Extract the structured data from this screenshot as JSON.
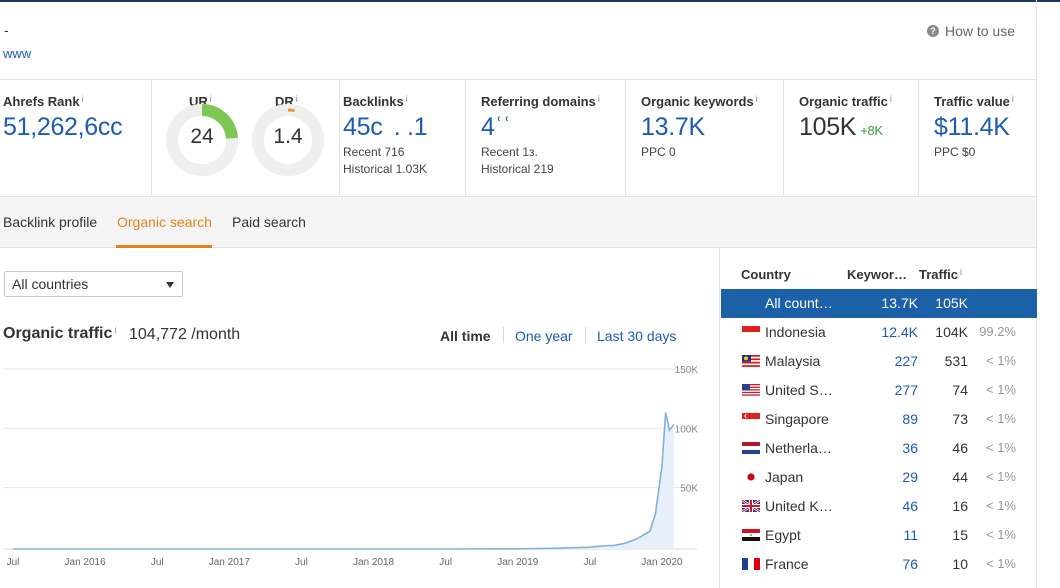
{
  "header": {
    "dash": "-",
    "url": "www",
    "how_to_use": "How to use"
  },
  "metrics": {
    "ahrefs_rank": {
      "label": "Ahrefs Rank",
      "value": "51,262,6сс"
    },
    "ur": {
      "label": "UR",
      "value": "24",
      "level": 24
    },
    "dr": {
      "label": "DR",
      "value": "1.4",
      "level": 1.4
    },
    "backlinks": {
      "label": "Backlinks",
      "value": "45с  . .1",
      "recent": "Recent 716",
      "historical": "Historical 1.03K"
    },
    "referring_domains": {
      "label": "Referring domains",
      "value": "4ʿʿ",
      "recent": "Recent 1з.",
      "historical": "Historical 219"
    },
    "organic_keywords": {
      "label": "Organic keywords",
      "value": "13.7K",
      "sub": "PPC 0"
    },
    "organic_traffic": {
      "label": "Organic traffic",
      "value": "105K",
      "delta": "+8K"
    },
    "traffic_value": {
      "label": "Traffic value",
      "value": "$11.4K",
      "sub": "PPC $0"
    },
    "info_mark": "i"
  },
  "tabs": [
    {
      "label": "Backlink profile"
    },
    {
      "label": "Organic search"
    },
    {
      "label": "Paid search"
    }
  ],
  "filters": {
    "country_select": "All countries"
  },
  "organic_traffic": {
    "title": "Organic traffic",
    "value": "104,772 /month",
    "ranges": [
      "All time",
      "One year",
      "Last 30 days"
    ],
    "selected_range": "All time"
  },
  "chart_data": {
    "type": "area",
    "title": "",
    "xlabel": "",
    "ylabel": "",
    "x_tick_labels": [
      "Jul",
      "Jan 2016",
      "Jul",
      "Jan 2017",
      "Jul",
      "Jan 2018",
      "Jul",
      "Jan 2019",
      "Jul",
      "Jan 2020"
    ],
    "y_tick_labels": [
      "150K",
      "100K",
      "50K"
    ],
    "ylim": [
      0,
      150000
    ],
    "grid": true,
    "x": [
      "2015-07",
      "2016-01",
      "2016-07",
      "2017-01",
      "2017-07",
      "2018-01",
      "2018-07",
      "2019-01",
      "2019-04",
      "2019-07",
      "2019-08",
      "2019-09",
      "2019-10",
      "2019-11",
      "2019-12",
      "2019-12-15",
      "2020-01",
      "2020-01-10",
      "2020-01-20",
      "2020-02"
    ],
    "series": [
      {
        "values": [
          0,
          0,
          0,
          0,
          0,
          0,
          0,
          200,
          600,
          1500,
          2500,
          3000,
          5000,
          9000,
          15000,
          30000,
          70000,
          115000,
          100000,
          105000
        ],
        "color": "#7fb1e0"
      }
    ]
  },
  "country_table": {
    "headers": {
      "country": "Country",
      "keywords": "Keywor…",
      "traffic": "Traffic"
    },
    "rows": [
      {
        "name": "All count…",
        "keywords": "13.7K",
        "traffic": "105K",
        "share": "",
        "flag": "none",
        "selected": true
      },
      {
        "name": "Indonesia",
        "keywords": "12.4K",
        "traffic": "104K",
        "share": "99.2%",
        "flag": "indonesia-flag-icon"
      },
      {
        "name": "Malaysia",
        "keywords": "227",
        "traffic": "531",
        "share": "< 1%",
        "flag": "malaysia-flag-icon"
      },
      {
        "name": "United S…",
        "keywords": "277",
        "traffic": "74",
        "share": "< 1%",
        "flag": "usa-flag-icon"
      },
      {
        "name": "Singapore",
        "keywords": "89",
        "traffic": "73",
        "share": "< 1%",
        "flag": "singapore-flag-icon"
      },
      {
        "name": "Netherla…",
        "keywords": "36",
        "traffic": "46",
        "share": "< 1%",
        "flag": "netherlands-flag-icon"
      },
      {
        "name": "Japan",
        "keywords": "29",
        "traffic": "44",
        "share": "< 1%",
        "flag": "japan-flag-icon"
      },
      {
        "name": "United K…",
        "keywords": "46",
        "traffic": "16",
        "share": "< 1%",
        "flag": "uk-flag-icon"
      },
      {
        "name": "Egypt",
        "keywords": "11",
        "traffic": "15",
        "share": "< 1%",
        "flag": "egypt-flag-icon"
      },
      {
        "name": "France",
        "keywords": "76",
        "traffic": "10",
        "share": "< 1%",
        "flag": "france-flag-icon"
      }
    ]
  },
  "colors": {
    "link": "#1c5bb8",
    "accent": "#e6821e",
    "selected_row": "#1c60a8",
    "positive": "#3a9c3a",
    "gauge_ur": "#7dc855",
    "gauge_dr": "#f0962c",
    "gauge_track": "#efefef"
  }
}
